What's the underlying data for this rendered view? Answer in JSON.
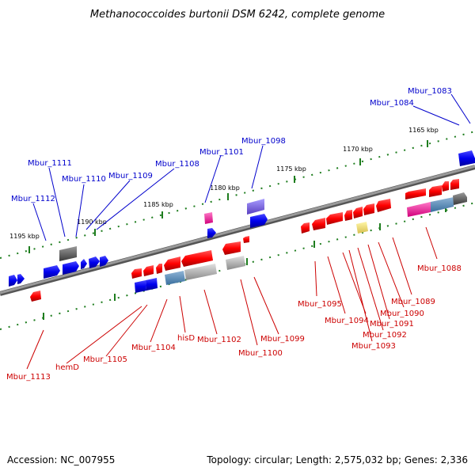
{
  "title": "Methanococcoides burtonii DSM 6242, complete genome",
  "footer": {
    "accession": "Accession: NC_007955",
    "summary": "Topology: circular; Length: 2,575,032 bp; Genes: 2,336"
  },
  "scale_labels": [
    "1165 kbp",
    "1170 kbp",
    "1175 kbp",
    "1180 kbp",
    "1185 kbp",
    "1190 kbp",
    "1195 kbp"
  ],
  "colors": {
    "forward_gene": "#0000ff",
    "reverse_gene": "#ff0000",
    "backbone": "#808080",
    "ticks": "#1e7d1e"
  },
  "forward_gene_labels": [
    "Mbur_1083",
    "Mbur_1084",
    "Mbur_1098",
    "Mbur_1101",
    "Mbur_1108",
    "Mbur_1109",
    "Mbur_1110",
    "Mbur_1111",
    "Mbur_1112"
  ],
  "reverse_gene_labels": [
    "Mbur_1088",
    "Mbur_1089",
    "Mbur_1090",
    "Mbur_1091",
    "Mbur_1092",
    "Mbur_1093",
    "Mbur_1094",
    "Mbur_1095",
    "Mbur_1099",
    "Mbur_1100",
    "Mbur_1102",
    "hisD",
    "Mbur_1104",
    "Mbur_1105",
    "hemD",
    "Mbur_1113"
  ]
}
